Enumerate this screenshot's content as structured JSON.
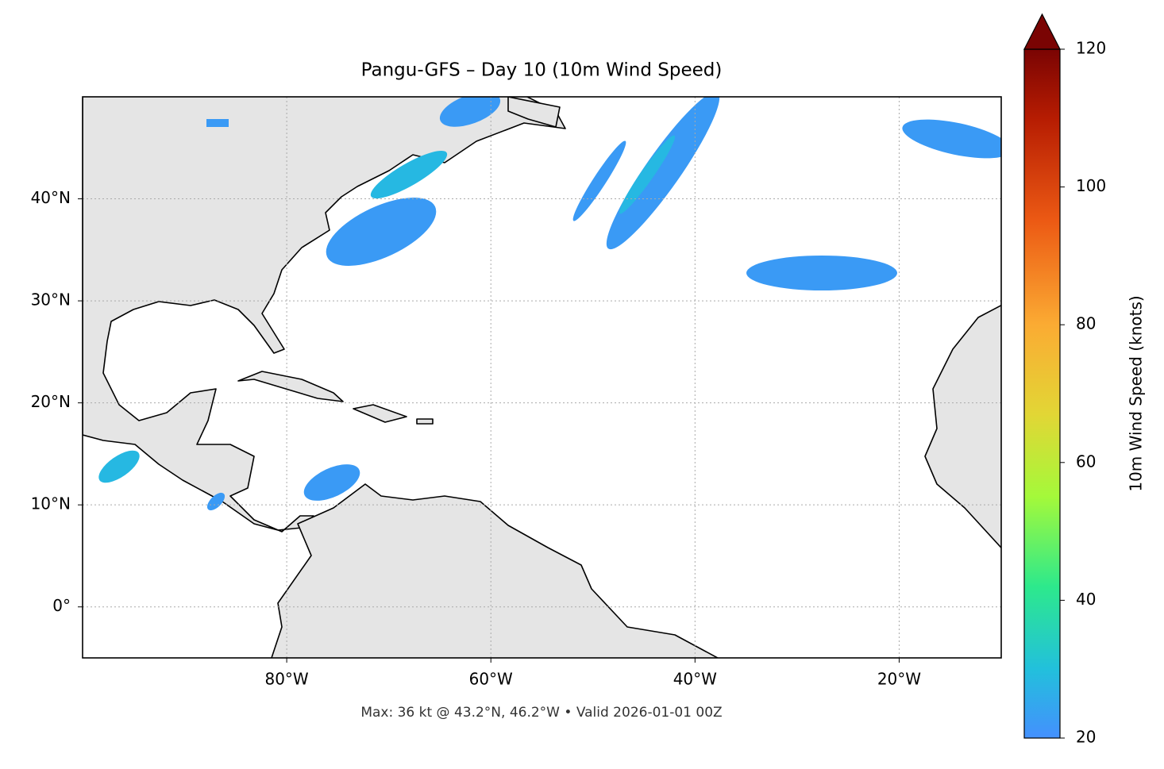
{
  "chart_data": {
    "type": "map",
    "title": "Pangu-GFS – Day 10 (10m Wind Speed)",
    "footer": "Max: 36 kt @ 43.2°N, 46.2°W • Valid 2026-01-01 00Z",
    "xlim": [
      -100,
      -10
    ],
    "ylim": [
      -5,
      50
    ],
    "xticks": [
      {
        "value": -80,
        "label": "80°W"
      },
      {
        "value": -60,
        "label": "60°W"
      },
      {
        "value": -40,
        "label": "40°W"
      },
      {
        "value": -20,
        "label": "20°W"
      }
    ],
    "yticks": [
      {
        "value": 0,
        "label": "0°"
      },
      {
        "value": 10,
        "label": "10°N"
      },
      {
        "value": 20,
        "label": "20°N"
      },
      {
        "value": 30,
        "label": "30°N"
      },
      {
        "value": 40,
        "label": "40°N"
      }
    ],
    "grid": true,
    "colorbar": {
      "label": "10m Wind Speed (knots)",
      "lim": [
        20,
        120
      ],
      "ticks": [
        20,
        40,
        60,
        80,
        100,
        120
      ]
    }
  }
}
